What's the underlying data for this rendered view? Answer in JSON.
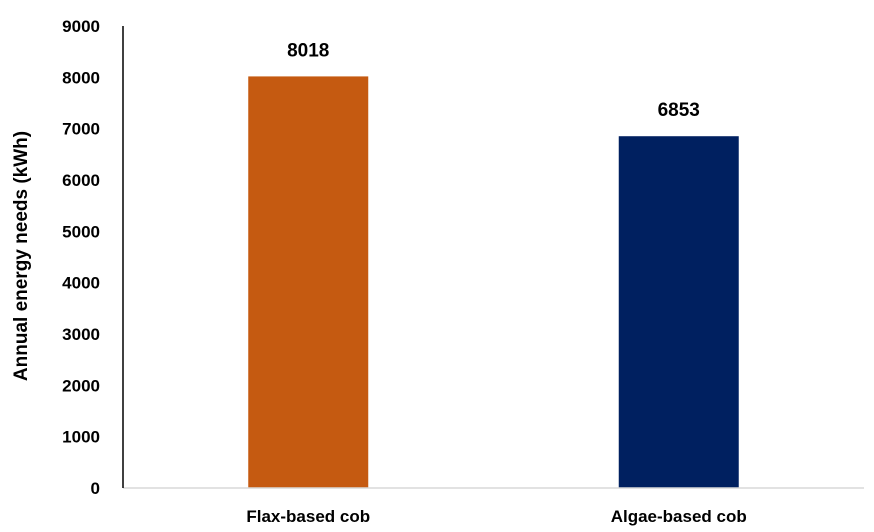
{
  "chart_data": {
    "type": "bar",
    "title": "",
    "xlabel": "",
    "ylabel": "Annual energy needs (kWh)",
    "categories": [
      "Flax-based cob",
      "Algae-based cob"
    ],
    "values": [
      8018,
      6853
    ],
    "data_labels": [
      "8018",
      "6853"
    ],
    "colors": [
      "#C55A11",
      "#002060"
    ],
    "ylim": [
      0,
      9000
    ],
    "yticks": [
      "0",
      "1000",
      "2000",
      "3000",
      "4000",
      "5000",
      "6000",
      "7000",
      "8000",
      "9000"
    ],
    "grid": false,
    "legend": "none"
  }
}
